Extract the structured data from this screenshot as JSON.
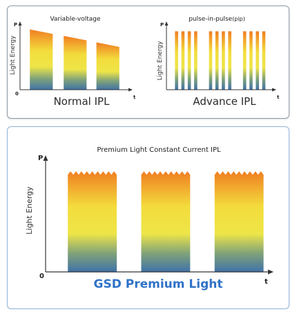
{
  "colors": {
    "gradient_top": "#f07e22",
    "gradient_mid": "#f3dc3c",
    "gradient_bottom": "#3f72a8",
    "caption_blue": "#2f72c8",
    "axis": "#333333"
  },
  "diagrams": {
    "normal": {
      "title": "Variable-voltage",
      "y_axis_letter": "P",
      "x_axis_letter": "t",
      "origin": "0",
      "y_label": "Light Energy",
      "caption": "Normal IPL",
      "pulses": [
        {
          "start": 0.09,
          "end": 0.3,
          "level_start": 0.93,
          "level_end": 0.86
        },
        {
          "start": 0.4,
          "end": 0.61,
          "level_start": 0.83,
          "level_end": 0.76
        },
        {
          "start": 0.7,
          "end": 0.91,
          "level_start": 0.73,
          "level_end": 0.66
        }
      ]
    },
    "advance": {
      "title_main": "pulse-in-pulse",
      "title_paren": "(pip)",
      "y_axis_letter": "P",
      "x_axis_letter": "t",
      "origin": "0",
      "y_label": "Light Energy",
      "caption": "Advance IPL",
      "pulse_level": 0.9,
      "groups": [
        [
          [
            0.08,
            0.11
          ],
          [
            0.14,
            0.17
          ],
          [
            0.2,
            0.23
          ],
          [
            0.26,
            0.29
          ]
        ],
        [
          [
            0.4,
            0.43
          ],
          [
            0.46,
            0.49
          ],
          [
            0.52,
            0.55
          ],
          [
            0.58,
            0.61
          ]
        ],
        [
          [
            0.72,
            0.75
          ],
          [
            0.78,
            0.81
          ],
          [
            0.84,
            0.87
          ],
          [
            0.9,
            0.93
          ]
        ]
      ]
    },
    "premium": {
      "title": "Premium Light Constant Current IPL",
      "y_axis_letter": "P",
      "x_axis_letter": "t",
      "origin": "0",
      "y_label": "Light Energy",
      "caption": "GSD Premium Light",
      "pulse_level": 0.9,
      "pulses": [
        {
          "start": 0.1,
          "end": 0.32
        },
        {
          "start": 0.43,
          "end": 0.65
        },
        {
          "start": 0.76,
          "end": 0.98
        }
      ]
    }
  }
}
